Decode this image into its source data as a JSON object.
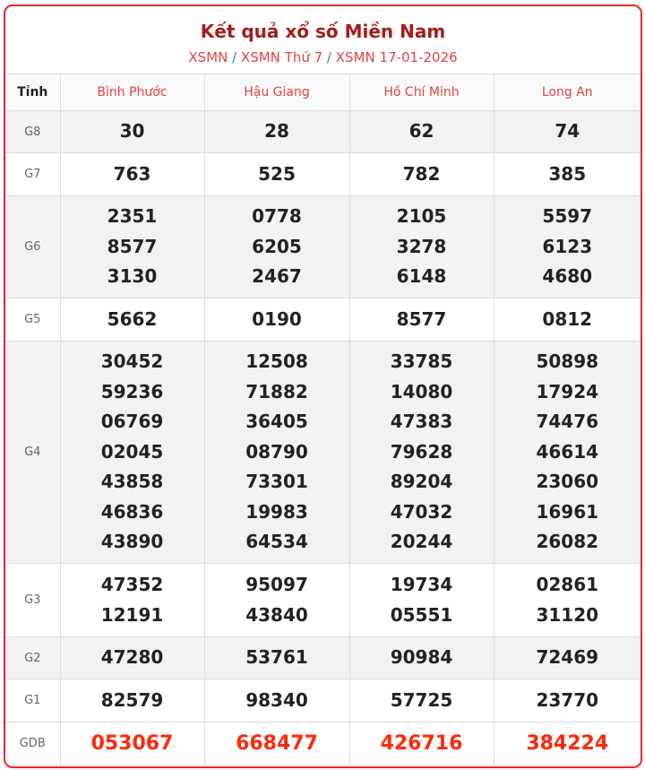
{
  "header": {
    "title": "Kết quả xổ số Miền Nam",
    "breadcrumb": [
      "XSMN",
      "XSMN Thứ 7",
      "XSMN 17-01-2026"
    ],
    "separator": "/"
  },
  "table": {
    "corner_label": "Tỉnh",
    "provinces": [
      "Bình Phước",
      "Hậu Giang",
      "Hồ Chí Minh",
      "Long An"
    ],
    "rows": [
      {
        "label": "G8",
        "shaded": true,
        "values": [
          [
            "30"
          ],
          [
            "28"
          ],
          [
            "62"
          ],
          [
            "74"
          ]
        ]
      },
      {
        "label": "G7",
        "shaded": false,
        "values": [
          [
            "763"
          ],
          [
            "525"
          ],
          [
            "782"
          ],
          [
            "385"
          ]
        ]
      },
      {
        "label": "G6",
        "shaded": true,
        "values": [
          [
            "2351",
            "8577",
            "3130"
          ],
          [
            "0778",
            "6205",
            "2467"
          ],
          [
            "2105",
            "3278",
            "6148"
          ],
          [
            "5597",
            "6123",
            "4680"
          ]
        ]
      },
      {
        "label": "G5",
        "shaded": false,
        "values": [
          [
            "5662"
          ],
          [
            "0190"
          ],
          [
            "8577"
          ],
          [
            "0812"
          ]
        ]
      },
      {
        "label": "G4",
        "shaded": true,
        "values": [
          [
            "30452",
            "59236",
            "06769",
            "02045",
            "43858",
            "46836",
            "43890"
          ],
          [
            "12508",
            "71882",
            "36405",
            "08790",
            "73301",
            "19983",
            "64534"
          ],
          [
            "33785",
            "14080",
            "47383",
            "79628",
            "89204",
            "47032",
            "20244"
          ],
          [
            "50898",
            "17924",
            "74476",
            "46614",
            "23060",
            "16961",
            "26082"
          ]
        ]
      },
      {
        "label": "G3",
        "shaded": false,
        "values": [
          [
            "47352",
            "12191"
          ],
          [
            "95097",
            "43840"
          ],
          [
            "19734",
            "05551"
          ],
          [
            "02861",
            "31120"
          ]
        ]
      },
      {
        "label": "G2",
        "shaded": true,
        "values": [
          [
            "47280"
          ],
          [
            "53761"
          ],
          [
            "90984"
          ],
          [
            "72469"
          ]
        ]
      },
      {
        "label": "G1",
        "shaded": false,
        "values": [
          [
            "82579"
          ],
          [
            "98340"
          ],
          [
            "57725"
          ],
          [
            "23770"
          ]
        ]
      },
      {
        "label": "GDB",
        "shaded": false,
        "special": true,
        "values": [
          [
            "053067"
          ],
          [
            "668477"
          ],
          [
            "426716"
          ],
          [
            "384224"
          ]
        ]
      }
    ]
  },
  "colors": {
    "accent": "#e8262d",
    "title": "#a51d1d",
    "special_prize": "#fd2a0b",
    "link": "#e34242"
  }
}
